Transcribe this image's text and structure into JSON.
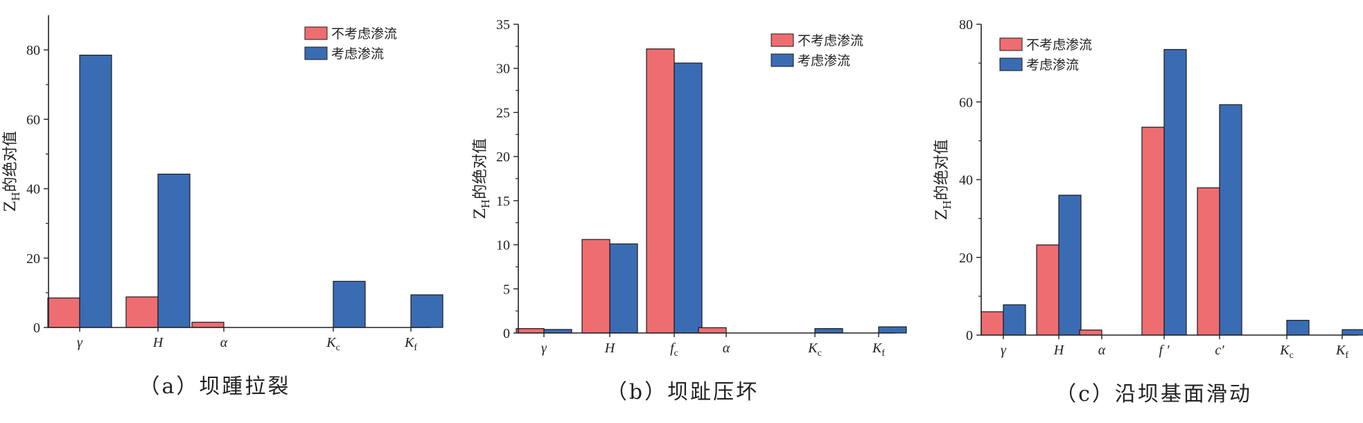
{
  "colors": {
    "no_seepage": "#EE6D71",
    "seepage": "#3A6CB4",
    "axis": "#222222"
  },
  "legend_labels": [
    "不考虑渗流",
    "考虑渗流"
  ],
  "chart_data": [
    {
      "type": "bar",
      "caption": "（a）坝踵拉裂",
      "ylabel": {
        "main": "Z",
        "sub": "H",
        "rest": "的绝对值"
      },
      "ylim": [
        0,
        90
      ],
      "yticks": [
        0,
        20,
        40,
        60,
        80
      ],
      "legend_position": "top-right",
      "categories": [
        {
          "main": "γ",
          "sub": ""
        },
        {
          "main": "H",
          "sub": ""
        },
        {
          "main": "α",
          "sub": ""
        },
        {
          "main": "K",
          "sub": "c"
        },
        {
          "main": "K",
          "sub": "f"
        }
      ],
      "series": [
        {
          "name": "不考虑渗流",
          "values": [
            8.5,
            8.8,
            1.5,
            0,
            0
          ]
        },
        {
          "name": "考虑渗流",
          "values": [
            78.5,
            44.2,
            0,
            13.3,
            9.4
          ]
        }
      ]
    },
    {
      "type": "bar",
      "caption": "（b）坝趾压坏",
      "ylabel": {
        "main": "Z",
        "sub": "H",
        "rest": "的绝对值"
      },
      "ylim": [
        0,
        35
      ],
      "yticks": [
        0,
        5,
        10,
        15,
        20,
        25,
        30,
        35
      ],
      "legend_position": "top-right",
      "categories": [
        {
          "main": "γ",
          "sub": ""
        },
        {
          "main": "H",
          "sub": ""
        },
        {
          "main": "f",
          "sub": "c"
        },
        {
          "main": "α",
          "sub": ""
        },
        {
          "main": "K",
          "sub": "c"
        },
        {
          "main": "K",
          "sub": "f"
        }
      ],
      "series": [
        {
          "name": "不考虑渗流",
          "values": [
            0.5,
            10.6,
            32.2,
            0.6,
            0,
            0
          ]
        },
        {
          "name": "考虑渗流",
          "values": [
            0.4,
            10.1,
            30.6,
            0,
            0.5,
            0.7
          ]
        }
      ]
    },
    {
      "type": "bar",
      "caption": "（c）沿坝基面滑动",
      "ylabel": {
        "main": "Z",
        "sub": "H",
        "rest": "的绝对值"
      },
      "ylim": [
        0,
        80
      ],
      "yticks": [
        0,
        20,
        40,
        60,
        80
      ],
      "legend_position": "top-left",
      "categories": [
        {
          "main": "γ",
          "sub": ""
        },
        {
          "main": "H",
          "sub": ""
        },
        {
          "main": "α",
          "sub": ""
        },
        {
          "main": "f ′",
          "sub": ""
        },
        {
          "main": "c′",
          "sub": ""
        },
        {
          "main": "K",
          "sub": "c"
        },
        {
          "main": "K",
          "sub": "f"
        }
      ],
      "series": [
        {
          "name": "不考虑渗流",
          "values": [
            6.0,
            23.2,
            1.3,
            53.5,
            37.9,
            0,
            0
          ]
        },
        {
          "name": "考虑渗流",
          "values": [
            7.8,
            36.0,
            0,
            73.5,
            59.3,
            3.8,
            1.4
          ]
        }
      ]
    }
  ]
}
